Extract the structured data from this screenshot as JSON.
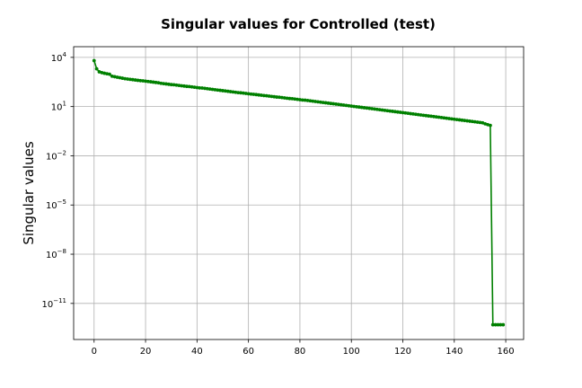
{
  "chart_data": {
    "type": "line",
    "title": "Singular values for Controlled (test)",
    "xlabel": "",
    "ylabel": "Singular values",
    "y_scale": "log",
    "xlim": [
      -7.95,
      166.95
    ],
    "ylim_log10": [
      -13.2,
      4.65
    ],
    "x_ticks": [
      0,
      20,
      40,
      60,
      80,
      100,
      120,
      140,
      160
    ],
    "y_ticks": [
      {
        "base": "10",
        "exp": "4",
        "log10": 4
      },
      {
        "base": "10",
        "exp": "1",
        "log10": 1
      },
      {
        "base": "10",
        "exp": "−2",
        "log10": -2
      },
      {
        "base": "10",
        "exp": "−5",
        "log10": -5
      },
      {
        "base": "10",
        "exp": "−8",
        "log10": -8
      },
      {
        "base": "10",
        "exp": "−11",
        "log10": -11
      }
    ],
    "grid": true,
    "legend": "none",
    "series": [
      {
        "color": "#008000",
        "marker": "dot",
        "x": [
          0,
          1,
          2,
          3,
          4,
          5,
          6,
          7,
          8,
          9,
          10,
          11,
          12,
          13,
          14,
          15,
          16,
          17,
          18,
          19,
          20,
          21,
          22,
          23,
          24,
          25,
          26,
          27,
          28,
          29,
          30,
          31,
          32,
          33,
          34,
          35,
          36,
          37,
          38,
          39,
          40,
          41,
          42,
          43,
          44,
          45,
          46,
          47,
          48,
          49,
          50,
          51,
          52,
          53,
          54,
          55,
          56,
          57,
          58,
          59,
          60,
          61,
          62,
          63,
          64,
          65,
          66,
          67,
          68,
          69,
          70,
          71,
          72,
          73,
          74,
          75,
          76,
          77,
          78,
          79,
          80,
          81,
          82,
          83,
          84,
          85,
          86,
          87,
          88,
          89,
          90,
          91,
          92,
          93,
          94,
          95,
          96,
          97,
          98,
          99,
          100,
          101,
          102,
          103,
          104,
          105,
          106,
          107,
          108,
          109,
          110,
          111,
          112,
          113,
          114,
          115,
          116,
          117,
          118,
          119,
          120,
          121,
          122,
          123,
          124,
          125,
          126,
          127,
          128,
          129,
          130,
          131,
          132,
          133,
          134,
          135,
          136,
          137,
          138,
          139,
          140,
          141,
          142,
          143,
          144,
          145,
          146,
          147,
          148,
          149,
          150,
          151,
          152,
          153,
          154,
          155,
          156,
          157,
          158,
          159
        ],
        "log10_y": [
          3.8,
          3.3,
          3.12,
          3.07,
          3.03,
          3.0,
          2.97,
          2.85,
          2.82,
          2.79,
          2.76,
          2.73,
          2.7,
          2.68,
          2.66,
          2.64,
          2.62,
          2.6,
          2.58,
          2.57,
          2.55,
          2.53,
          2.51,
          2.49,
          2.47,
          2.45,
          2.42,
          2.4,
          2.38,
          2.36,
          2.34,
          2.33,
          2.31,
          2.29,
          2.27,
          2.25,
          2.23,
          2.22,
          2.2,
          2.18,
          2.16,
          2.14,
          2.13,
          2.11,
          2.09,
          2.07,
          2.05,
          2.03,
          2.01,
          1.99,
          1.97,
          1.95,
          1.93,
          1.91,
          1.89,
          1.87,
          1.85,
          1.84,
          1.82,
          1.8,
          1.78,
          1.76,
          1.75,
          1.73,
          1.71,
          1.69,
          1.67,
          1.66,
          1.64,
          1.62,
          1.6,
          1.58,
          1.57,
          1.55,
          1.53,
          1.51,
          1.49,
          1.48,
          1.46,
          1.44,
          1.42,
          1.4,
          1.39,
          1.37,
          1.35,
          1.33,
          1.31,
          1.29,
          1.27,
          1.25,
          1.23,
          1.21,
          1.19,
          1.17,
          1.15,
          1.13,
          1.11,
          1.09,
          1.07,
          1.05,
          1.03,
          1.01,
          0.99,
          0.97,
          0.95,
          0.93,
          0.91,
          0.89,
          0.87,
          0.85,
          0.83,
          0.81,
          0.79,
          0.77,
          0.75,
          0.73,
          0.71,
          0.69,
          0.67,
          0.65,
          0.63,
          0.61,
          0.59,
          0.57,
          0.55,
          0.53,
          0.51,
          0.49,
          0.47,
          0.45,
          0.43,
          0.41,
          0.39,
          0.37,
          0.35,
          0.33,
          0.31,
          0.29,
          0.27,
          0.25,
          0.23,
          0.21,
          0.19,
          0.17,
          0.15,
          0.13,
          0.11,
          0.09,
          0.07,
          0.05,
          0.03,
          0.01,
          -0.05,
          -0.1,
          -0.15,
          -12.3,
          -12.3,
          -12.3,
          -12.3,
          -12.3
        ]
      }
    ]
  }
}
